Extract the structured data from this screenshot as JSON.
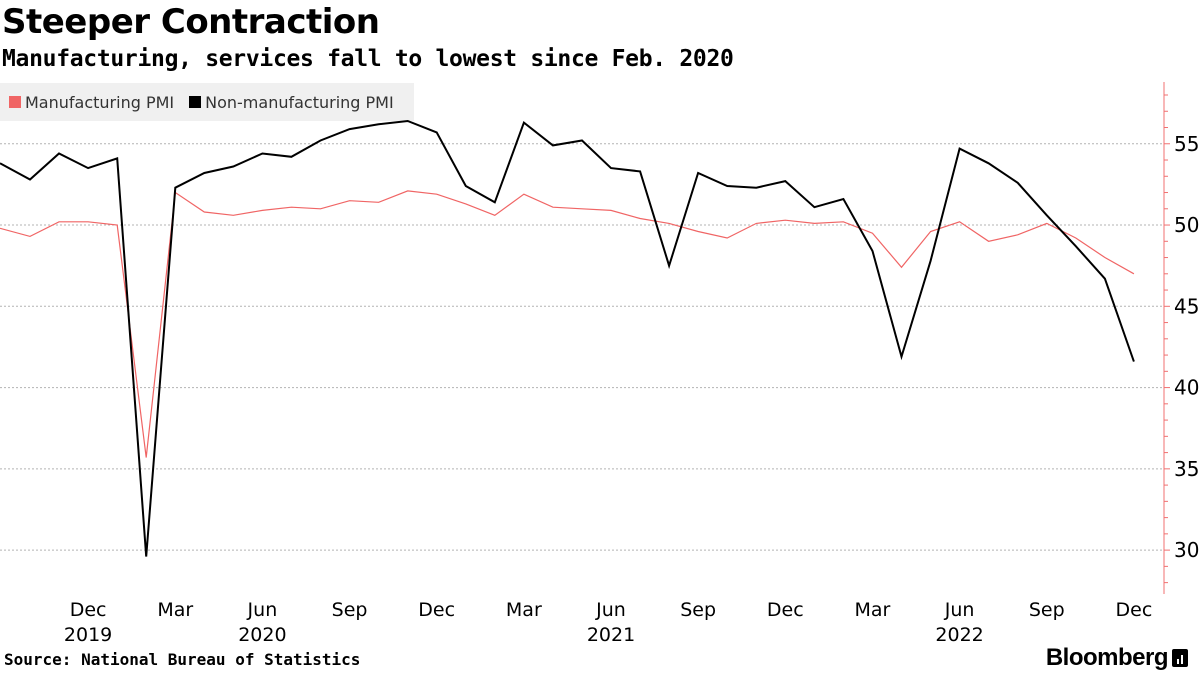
{
  "header": {
    "title": "Steeper Contraction",
    "subtitle": "Manufacturing, services fall to lowest since Feb. 2020"
  },
  "legend": {
    "items": [
      {
        "label": "Manufacturing PMI",
        "color": "#f06565"
      },
      {
        "label": "Non-manufacturing PMI",
        "color": "#000000"
      }
    ]
  },
  "footer": {
    "source": "Source: National Bureau of Statistics",
    "brand": "Bloomberg"
  },
  "chart_data": {
    "type": "line",
    "x": [
      "2019-10",
      "2019-11",
      "2019-12",
      "2020-01",
      "2020-02",
      "2020-03",
      "2020-04",
      "2020-05",
      "2020-06",
      "2020-07",
      "2020-08",
      "2020-09",
      "2020-10",
      "2020-11",
      "2020-12",
      "2021-01",
      "2021-02",
      "2021-03",
      "2021-04",
      "2021-05",
      "2021-06",
      "2021-07",
      "2021-08",
      "2021-09",
      "2021-10",
      "2021-11",
      "2021-12",
      "2022-01",
      "2022-02",
      "2022-03",
      "2022-04",
      "2022-05",
      "2022-06",
      "2022-07",
      "2022-08",
      "2022-09",
      "2022-10",
      "2022-11",
      "2022-12"
    ],
    "series": [
      {
        "name": "Manufacturing PMI",
        "color": "#f06565",
        "values": [
          49.3,
          50.2,
          50.2,
          50.0,
          35.7,
          52.0,
          50.8,
          50.6,
          50.9,
          51.1,
          51.0,
          51.5,
          51.4,
          52.1,
          51.9,
          51.3,
          50.6,
          51.9,
          51.1,
          51.0,
          50.9,
          50.4,
          50.1,
          49.6,
          49.2,
          50.1,
          50.3,
          50.1,
          50.2,
          49.5,
          47.4,
          49.6,
          50.2,
          49.0,
          49.4,
          50.1,
          49.2,
          48.0,
          47.0
        ]
      },
      {
        "name": "Non-manufacturing PMI",
        "color": "#000000",
        "values": [
          52.8,
          54.4,
          53.5,
          54.1,
          29.6,
          52.3,
          53.2,
          53.6,
          54.4,
          54.2,
          55.2,
          55.9,
          56.2,
          56.4,
          55.7,
          52.4,
          51.4,
          56.3,
          54.9,
          55.2,
          53.5,
          53.3,
          47.5,
          53.2,
          52.4,
          52.3,
          52.7,
          51.1,
          51.6,
          48.4,
          41.9,
          47.8,
          54.7,
          53.8,
          52.6,
          50.6,
          48.7,
          46.7,
          41.6
        ]
      }
    ],
    "x_ticks": [
      "Dec",
      "Mar",
      "Jun",
      "Sep",
      "Dec",
      "Mar",
      "Jun",
      "Sep",
      "Dec",
      "Mar",
      "Jun",
      "Sep",
      "Dec"
    ],
    "x_tick_dates": [
      "2019-12",
      "2020-03",
      "2020-06",
      "2020-09",
      "2020-12",
      "2021-03",
      "2021-06",
      "2021-09",
      "2021-12",
      "2022-03",
      "2022-06",
      "2022-09",
      "2022-12"
    ],
    "year_labels": [
      "2019",
      "2020",
      "2021",
      "2022"
    ],
    "year_label_dates": [
      "2019-12",
      "2020-06",
      "2021-06",
      "2022-06"
    ],
    "y_ticks": [
      30,
      35,
      40,
      45,
      50,
      55
    ],
    "ylim": [
      27.3,
      58.8
    ],
    "y_axis_side": "right",
    "grid": true,
    "legend_placement": "top-left"
  }
}
